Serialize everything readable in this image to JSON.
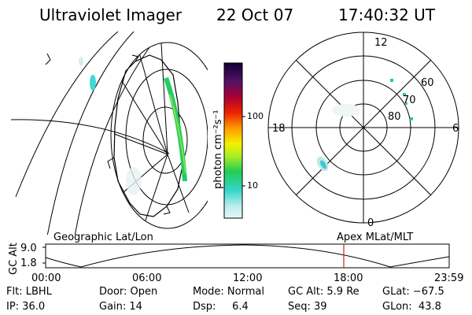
{
  "header": {
    "instrument": "Ultraviolet Imager",
    "date": "22 Oct 07",
    "time": "17:40:32 UT"
  },
  "colorbar": {
    "label": "photon cm⁻²s⁻¹",
    "ticks": [
      "100",
      "10"
    ]
  },
  "polar_plot": {
    "mlt_labels": [
      "12",
      "18",
      "6",
      "0"
    ],
    "lat_labels": [
      "60",
      "70",
      "80"
    ]
  },
  "altitude_plot": {
    "left_title": "Geographic Lat/Lon",
    "right_title": "Apex MLat/MLT",
    "ylabel": "GC Alt",
    "yticks": [
      "9.0",
      "1.8"
    ],
    "xticks": [
      "00:00",
      "06:00",
      "12:00",
      "18:00",
      "23:59"
    ],
    "current_time_marker_color": "#cc2222"
  },
  "info": {
    "flt": "Flt: LBHL",
    "door": "Door: Open",
    "mode": "Mode: Normal",
    "gc_alt": "GC Alt: 5.9 Re",
    "glat": "GLat: −67.5",
    "ip": "IP: 36.0",
    "gain": "Gain: 14",
    "dsp": "Dsp:     6.4",
    "seq": "Seq: 39",
    "glon": "GLon:  43.8"
  }
}
